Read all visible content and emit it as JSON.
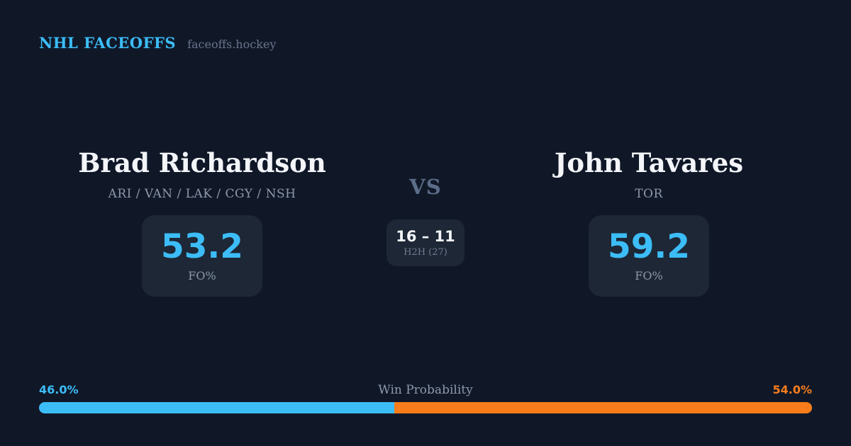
{
  "header": {
    "brand": "NHL FACEOFFS",
    "site": "faceoffs.hockey"
  },
  "matchup": {
    "left_player": {
      "name": "Brad Richardson",
      "teams": "ARI / VAN / LAK / CGY / NSH",
      "stat_value": "53.2",
      "stat_label": "FO%"
    },
    "right_player": {
      "name": "John Tavares",
      "teams": "TOR",
      "stat_value": "59.2",
      "stat_label": "FO%"
    },
    "vs_label": "VS",
    "h2h": {
      "record": "16 – 11",
      "label": "H2H (27)"
    }
  },
  "win_probability": {
    "title": "Win Probability",
    "left_pct_label": "46.0%",
    "right_pct_label": "54.0%",
    "left_pct": 46.0,
    "right_pct": 54.0
  },
  "colors": {
    "background": "#101828",
    "card": "#1d2735",
    "accent_blue": "#3cbdf8",
    "accent_orange": "#f87d1a",
    "muted_text": "#8c98aa",
    "vs_text": "#5c6d89",
    "white_text": "#f3f5f9"
  }
}
